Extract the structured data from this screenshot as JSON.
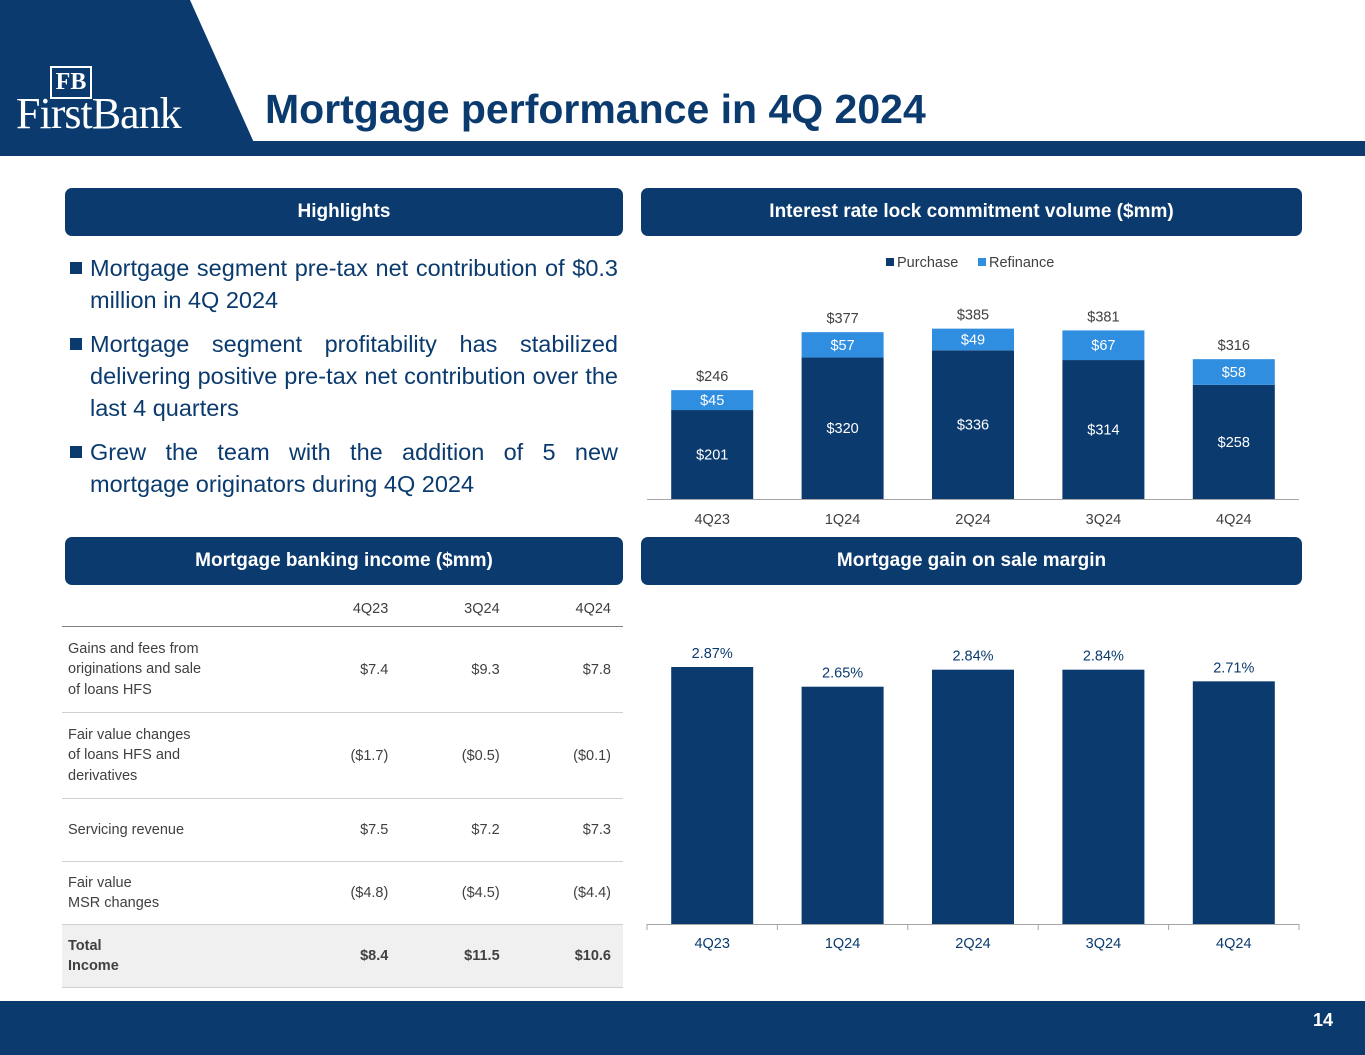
{
  "header": {
    "logo_monogram": "FB",
    "logo_text": "FirstBank",
    "title": "Mortgage performance in 4Q 2024"
  },
  "sections": {
    "highlights": "Highlights",
    "lock_volume": "Interest rate lock commitment volume ($mm)",
    "income": "Mortgage banking income ($mm)",
    "margin": "Mortgage gain on sale margin"
  },
  "highlights": [
    "Mortgage segment pre-tax net contribution of $0.3 million in 4Q 2024",
    "Mortgage segment profitability has stabilized delivering positive pre-tax net contribution over the last 4 quarters",
    "Grew the team with the addition of 5 new mortgage originators during 4Q 2024"
  ],
  "income_table": {
    "columns": [
      "",
      "4Q23",
      "3Q24",
      "4Q24"
    ],
    "rows": [
      {
        "label": [
          "Gains and fees from",
          "originations and sale",
          "of loans HFS"
        ],
        "values": [
          "$7.4",
          "$9.3",
          "$7.8"
        ]
      },
      {
        "label": [
          "Fair value changes",
          "of loans HFS and",
          "derivatives"
        ],
        "values": [
          "($1.7)",
          "($0.5)",
          "($0.1)"
        ]
      },
      {
        "label": [
          "Servicing revenue"
        ],
        "values": [
          "$7.5",
          "$7.2",
          "$7.3"
        ]
      },
      {
        "label": [
          "Fair value",
          "MSR changes"
        ],
        "values": [
          "($4.8)",
          "($4.5)",
          "($4.4)"
        ]
      },
      {
        "label": [
          "Total",
          "Income"
        ],
        "values": [
          "$8.4",
          "$11.5",
          "$10.6"
        ],
        "total": true
      }
    ]
  },
  "chart_data": [
    {
      "type": "bar",
      "stacked": true,
      "categories": [
        "4Q23",
        "1Q24",
        "2Q24",
        "3Q24",
        "4Q24"
      ],
      "series": [
        {
          "name": "Purchase",
          "values": [
            201,
            320,
            336,
            314,
            258
          ],
          "labels": [
            "$201",
            "$320",
            "$336",
            "$314",
            "$258"
          ],
          "color": "#0b3b6e"
        },
        {
          "name": "Refinance",
          "values": [
            45,
            57,
            49,
            67,
            58
          ],
          "labels": [
            "$45",
            "$57",
            "$49",
            "$67",
            "$58"
          ],
          "color": "#2f8ee0"
        }
      ],
      "totals": [
        "$246",
        "$377",
        "$385",
        "$381",
        "$316"
      ],
      "legend": "top-center",
      "ylim": [
        0,
        400
      ]
    },
    {
      "type": "bar",
      "categories": [
        "4Q23",
        "1Q24",
        "2Q24",
        "3Q24",
        "4Q24"
      ],
      "values": [
        2.87,
        2.65,
        2.84,
        2.84,
        2.71
      ],
      "labels": [
        "2.87%",
        "2.65%",
        "2.84%",
        "2.84%",
        "2.71%"
      ],
      "color": "#0b3b6e",
      "ylim": [
        0,
        2.87
      ]
    }
  ],
  "footer": {
    "page_number": "14"
  }
}
